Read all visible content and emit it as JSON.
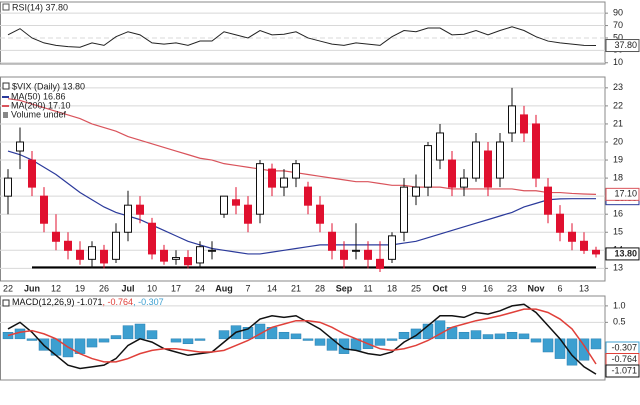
{
  "chart_data": [
    {
      "type": "rsi",
      "title": "RSI(14) 37.80",
      "value_label": "37.80",
      "color": "#222222",
      "values": [
        55,
        65,
        50,
        42,
        38,
        36,
        35,
        42,
        38,
        52,
        60,
        55,
        42,
        40,
        42,
        38,
        45,
        45,
        60,
        55,
        50,
        62,
        55,
        56,
        60,
        50,
        45,
        40,
        38,
        42,
        40,
        38,
        52,
        62,
        60,
        66,
        66,
        55,
        56,
        62,
        55,
        62,
        68,
        62,
        52,
        45,
        42,
        40,
        38,
        37.8
      ],
      "ylim": [
        8,
        108
      ],
      "yticks": [
        10,
        30,
        50,
        70,
        90
      ],
      "grid": true
    },
    {
      "type": "candlestick",
      "title": "$VIX (Daily) 13.80",
      "value_label": "13.80",
      "up_color": "#111111",
      "down_color": "#e0102f",
      "categories": [
        "22",
        null,
        "Jun",
        null,
        "12",
        null,
        "19",
        null,
        "26",
        null,
        "Jul",
        null,
        "10",
        null,
        "17",
        null,
        "24",
        null,
        "Aug",
        null,
        "7",
        null,
        "14",
        null,
        "21",
        null,
        "28",
        null,
        "Sep",
        null,
        "11",
        null,
        "18",
        null,
        "25",
        null,
        "Oct",
        null,
        "9",
        null,
        "16",
        null,
        "23",
        null,
        "Nov",
        null,
        "6",
        null,
        "13",
        null
      ],
      "open": [
        17,
        19.5,
        19,
        17,
        15,
        14.5,
        14,
        13.5,
        14,
        13.5,
        15,
        16.5,
        15.5,
        14,
        13.5,
        13.6,
        13.3,
        14,
        16,
        16.8,
        16.5,
        16,
        18.5,
        17.5,
        18,
        17.5,
        16.5,
        15,
        14,
        14,
        14,
        13.5,
        13.5,
        15,
        17,
        17.5,
        19,
        19,
        17.5,
        18,
        19.5,
        18,
        20.5,
        21.5,
        21,
        17.5,
        16,
        15,
        14.5,
        14
      ],
      "high": [
        18.5,
        20.8,
        19.5,
        17.5,
        16,
        15,
        14.5,
        14.5,
        14.3,
        15.5,
        17.3,
        17,
        15.8,
        14.3,
        14,
        14,
        14.5,
        14.5,
        17,
        17.5,
        17,
        19,
        18.8,
        18.5,
        19,
        17.8,
        17,
        15.5,
        14.5,
        15.5,
        14.5,
        14.5,
        15,
        18,
        18.2,
        20,
        21,
        19.5,
        18.5,
        20.5,
        20,
        20.5,
        23,
        22,
        21.5,
        18,
        16.5,
        15.5,
        15,
        14.2
      ],
      "low": [
        16,
        18.5,
        17,
        15,
        14,
        13.5,
        13.2,
        13,
        13,
        13.3,
        14.5,
        15.5,
        13.5,
        13.2,
        13.2,
        13,
        13,
        13.5,
        15.8,
        16,
        15,
        15.5,
        17,
        17,
        17.5,
        16,
        15,
        13.5,
        13,
        13.5,
        13,
        12.8,
        13.3,
        14.5,
        16.5,
        17,
        18.5,
        17,
        17,
        17.8,
        17,
        17.5,
        20,
        20,
        17.5,
        15.5,
        14.5,
        14,
        13.8,
        13.6
      ],
      "close": [
        18,
        20,
        17.5,
        15.5,
        14.5,
        14,
        13.5,
        14.2,
        13.3,
        15,
        16.5,
        16,
        13.8,
        13.4,
        13.6,
        13.2,
        14.2,
        14,
        17,
        16.5,
        15.5,
        18.8,
        17.5,
        18,
        18.8,
        16.5,
        15.5,
        14,
        13.5,
        14,
        13.5,
        13,
        14.8,
        17.5,
        17.5,
        19.8,
        20.5,
        17.5,
        18,
        20,
        17.5,
        20,
        22,
        20.5,
        18,
        16,
        15,
        14.5,
        14,
        13.8
      ],
      "series": [
        {
          "name": "MA(50) 16.86",
          "color": "#2b3a9b",
          "value_label": "16.86",
          "values": [
            19.5,
            19.3,
            19.0,
            18.6,
            18.2,
            17.7,
            17.2,
            16.8,
            16.4,
            16.1,
            15.9,
            15.7,
            15.4,
            15.1,
            14.8,
            14.5,
            14.3,
            14.1,
            14.0,
            13.9,
            13.8,
            13.8,
            13.9,
            14.0,
            14.1,
            14.2,
            14.3,
            14.3,
            14.3,
            14.3,
            14.3,
            14.3,
            14.3,
            14.4,
            14.5,
            14.7,
            14.9,
            15.1,
            15.3,
            15.5,
            15.7,
            15.9,
            16.1,
            16.4,
            16.6,
            16.8,
            16.85,
            16.86,
            16.86,
            16.86
          ]
        },
        {
          "name": "MA(200) 17.10",
          "color": "#d9535b",
          "value_label": "17.10",
          "values": [
            22.4,
            22.3,
            22.1,
            21.9,
            21.7,
            21.5,
            21.3,
            21.0,
            20.8,
            20.6,
            20.3,
            20.1,
            19.9,
            19.7,
            19.5,
            19.3,
            19.1,
            19.0,
            18.8,
            18.7,
            18.6,
            18.5,
            18.4,
            18.4,
            18.3,
            18.2,
            18.1,
            18.0,
            17.9,
            17.8,
            17.8,
            17.7,
            17.6,
            17.6,
            17.5,
            17.5,
            17.5,
            17.4,
            17.4,
            17.4,
            17.4,
            17.4,
            17.4,
            17.3,
            17.3,
            17.2,
            17.2,
            17.15,
            17.12,
            17.1
          ]
        }
      ],
      "volume_legend": "Volume undef",
      "support_line": {
        "value": 13.05,
        "start": "Jun"
      },
      "ylim": [
        12.3,
        23.6
      ],
      "yticks": [
        13,
        14,
        15,
        16,
        17,
        18,
        19,
        20,
        21,
        22,
        23
      ],
      "grid": true
    },
    {
      "type": "macd",
      "series": [
        {
          "name": "MACD(12,26,9) -1.071",
          "color": "#111111",
          "value_label": "-1.071",
          "values": [
            0.3,
            0.5,
            0.2,
            -0.2,
            -0.5,
            -0.8,
            -0.9,
            -0.85,
            -0.8,
            -0.6,
            -0.2,
            0.0,
            -0.1,
            -0.3,
            -0.4,
            -0.5,
            -0.45,
            -0.4,
            -0.1,
            0.2,
            0.3,
            0.6,
            0.7,
            0.65,
            0.7,
            0.5,
            0.3,
            0.0,
            -0.3,
            -0.35,
            -0.45,
            -0.5,
            -0.4,
            -0.1,
            0.1,
            0.4,
            0.7,
            0.7,
            0.65,
            0.8,
            0.75,
            0.85,
            1.0,
            1.05,
            0.8,
            0.4,
            0.0,
            -0.5,
            -0.85,
            -1.071
          ]
        },
        {
          "name": ", -0.764",
          "color": "#e0403a",
          "value_label": "-0.764",
          "values": [
            0.1,
            0.2,
            0.25,
            0.15,
            0.0,
            -0.25,
            -0.45,
            -0.6,
            -0.7,
            -0.7,
            -0.6,
            -0.45,
            -0.35,
            -0.3,
            -0.3,
            -0.35,
            -0.4,
            -0.4,
            -0.35,
            -0.2,
            -0.05,
            0.15,
            0.35,
            0.45,
            0.55,
            0.55,
            0.5,
            0.35,
            0.15,
            0.0,
            -0.15,
            -0.3,
            -0.35,
            -0.3,
            -0.2,
            -0.05,
            0.15,
            0.35,
            0.45,
            0.55,
            0.62,
            0.7,
            0.8,
            0.9,
            0.9,
            0.8,
            0.6,
            0.3,
            -0.2,
            -0.764
          ]
        },
        {
          "name": ", -0.307",
          "color": "#3c9fd0",
          "value_label": "-0.307",
          "style": "bars",
          "values": [
            0.2,
            0.3,
            -0.05,
            -0.35,
            -0.5,
            -0.55,
            -0.45,
            -0.25,
            -0.1,
            0.1,
            0.4,
            0.45,
            0.25,
            0,
            -0.1,
            -0.15,
            -0.05,
            0,
            0.25,
            0.4,
            0.35,
            0.45,
            0.35,
            0.2,
            0.15,
            -0.05,
            -0.2,
            -0.35,
            -0.45,
            -0.35,
            -0.3,
            -0.2,
            -0.05,
            0.2,
            0.3,
            0.45,
            0.55,
            0.35,
            0.2,
            0.25,
            0.13,
            0.15,
            0.2,
            0.15,
            -0.1,
            -0.4,
            -0.6,
            -0.8,
            -0.65,
            -0.307
          ]
        }
      ],
      "ylim": [
        -1.25,
        1.3
      ],
      "yticks": [
        {
          "value": 1,
          "label": "1.0"
        },
        0.5
      ],
      "grid": true
    }
  ]
}
